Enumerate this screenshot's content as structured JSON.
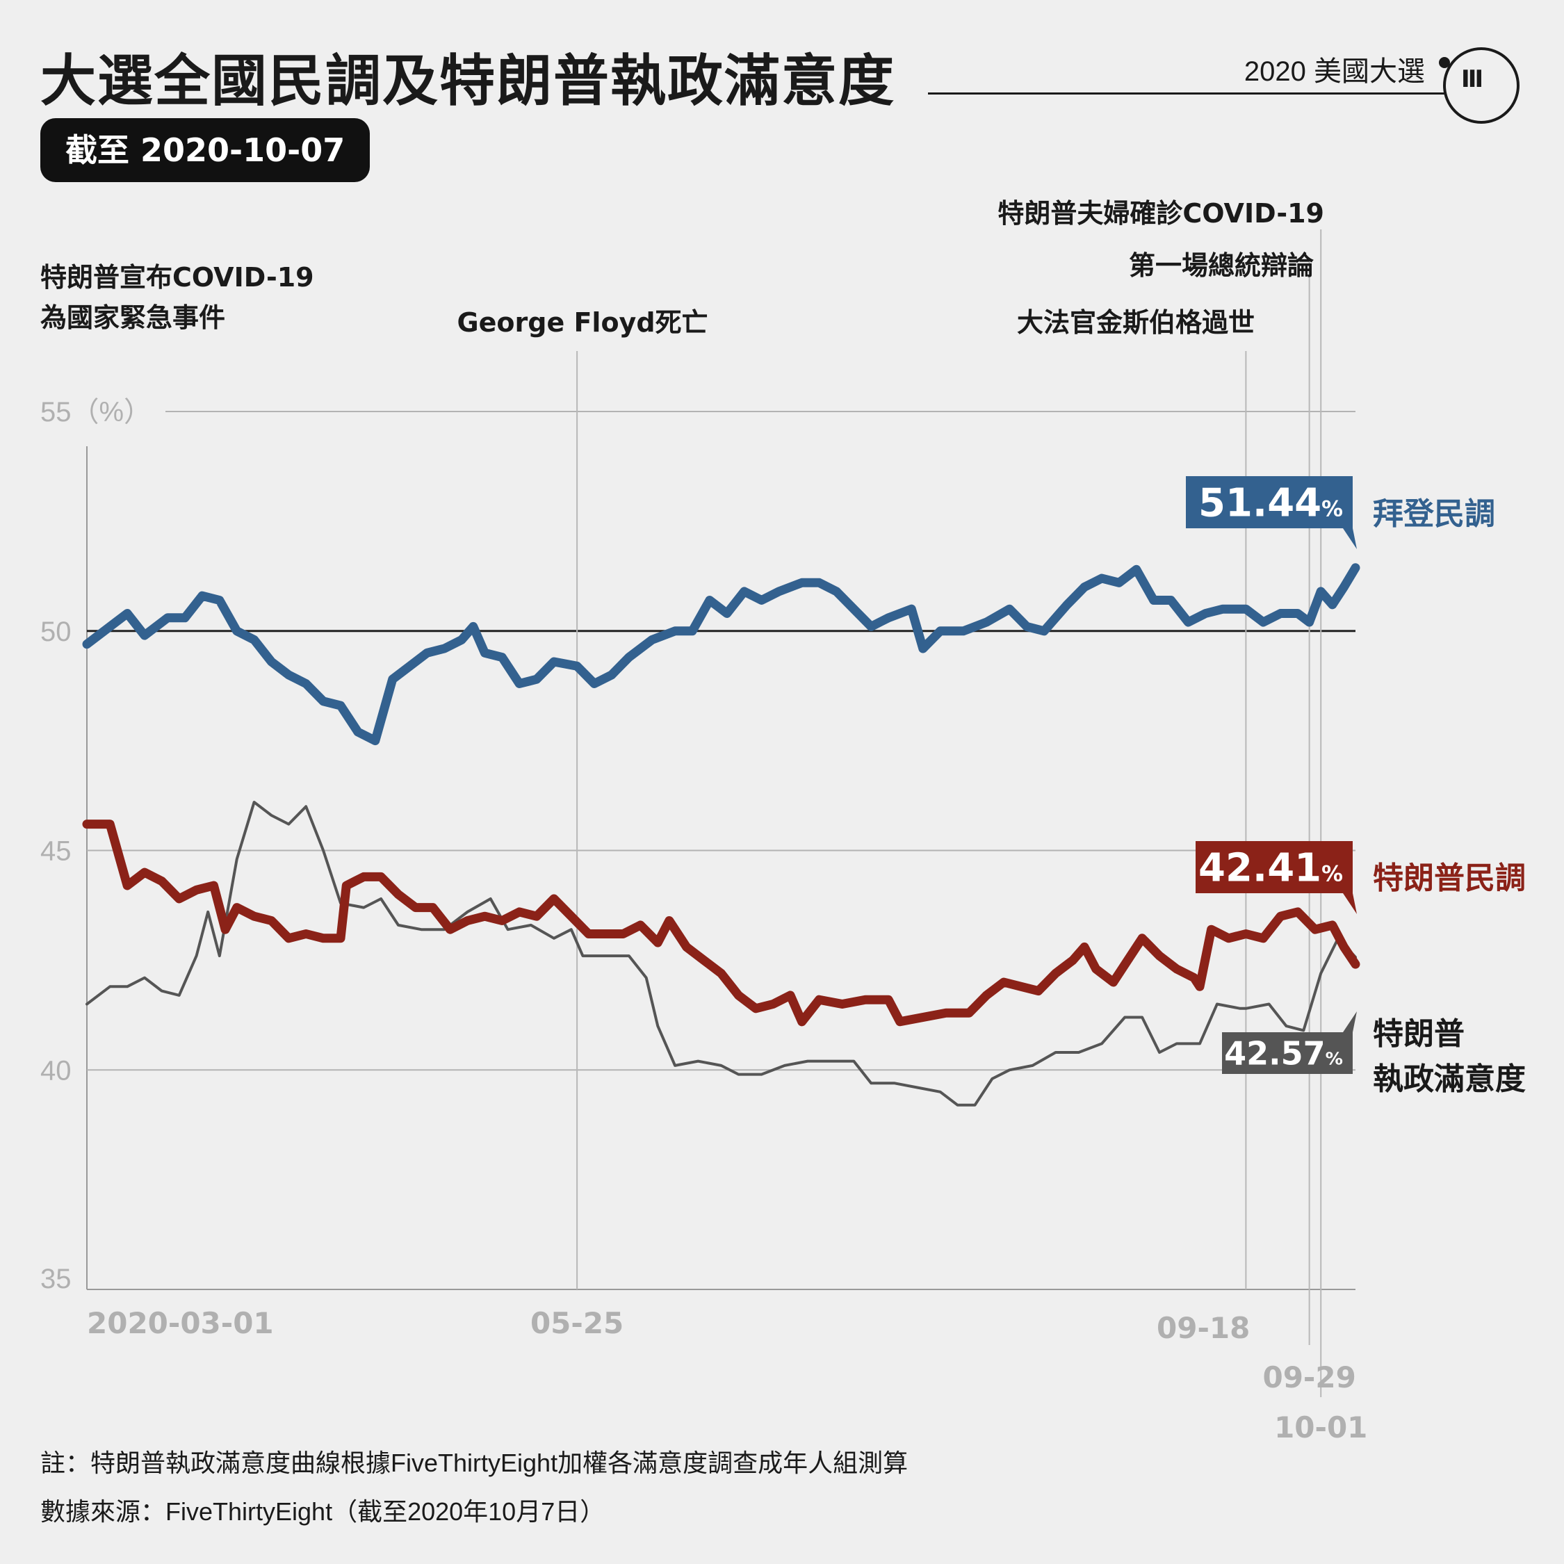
{
  "header": {
    "title": "大選全國民調及特朗普執政滿意度",
    "section_label": "2020 美國大選",
    "date_badge": "截至 2020-10-07",
    "logo": "端-logo-icon"
  },
  "chart_data": {
    "type": "line",
    "title": "大選全國民調及特朗普執政滿意度",
    "ylim": [
      35,
      55
    ],
    "y_ticks": [
      {
        "value": 55,
        "label": "55（%）"
      },
      {
        "value": 50,
        "label": "50"
      },
      {
        "value": 45,
        "label": "45"
      },
      {
        "value": 40,
        "label": "40"
      },
      {
        "value": 35,
        "label": "35"
      }
    ],
    "x_range": [
      "2020-03-01",
      "2020-10-07"
    ],
    "x_ticks": [
      {
        "date": "2020-03-01",
        "label": "2020-03-01"
      },
      {
        "date": "2020-05-25",
        "label": "05-25"
      },
      {
        "date": "2020-09-18",
        "label": "09-18"
      },
      {
        "date": "2020-09-29",
        "label": "09-29"
      },
      {
        "date": "2020-10-01",
        "label": "10-01"
      }
    ],
    "series": [
      {
        "name": "拜登民調",
        "color": "#33618f",
        "end_label": "51.44",
        "points": [
          [
            "2020-03-01",
            49.7
          ],
          [
            "2020-03-05",
            50.1
          ],
          [
            "2020-03-08",
            50.4
          ],
          [
            "2020-03-11",
            49.9
          ],
          [
            "2020-03-15",
            50.3
          ],
          [
            "2020-03-18",
            50.3
          ],
          [
            "2020-03-21",
            50.8
          ],
          [
            "2020-03-24",
            50.7
          ],
          [
            "2020-03-27",
            50.0
          ],
          [
            "2020-03-30",
            49.8
          ],
          [
            "2020-04-02",
            49.3
          ],
          [
            "2020-04-05",
            49.0
          ],
          [
            "2020-04-08",
            48.8
          ],
          [
            "2020-04-11",
            48.4
          ],
          [
            "2020-04-14",
            48.3
          ],
          [
            "2020-04-17",
            47.7
          ],
          [
            "2020-04-20",
            47.5
          ],
          [
            "2020-04-23",
            48.9
          ],
          [
            "2020-04-26",
            49.2
          ],
          [
            "2020-04-29",
            49.5
          ],
          [
            "2020-05-02",
            49.6
          ],
          [
            "2020-05-05",
            49.8
          ],
          [
            "2020-05-07",
            50.1
          ],
          [
            "2020-05-09",
            49.5
          ],
          [
            "2020-05-12",
            49.4
          ],
          [
            "2020-05-15",
            48.8
          ],
          [
            "2020-05-18",
            48.9
          ],
          [
            "2020-05-21",
            49.3
          ],
          [
            "2020-05-25",
            49.2
          ],
          [
            "2020-05-28",
            48.8
          ],
          [
            "2020-05-31",
            49.0
          ],
          [
            "2020-06-03",
            49.4
          ],
          [
            "2020-06-07",
            49.8
          ],
          [
            "2020-06-11",
            50.0
          ],
          [
            "2020-06-14",
            50.0
          ],
          [
            "2020-06-17",
            50.7
          ],
          [
            "2020-06-20",
            50.4
          ],
          [
            "2020-06-23",
            50.9
          ],
          [
            "2020-06-26",
            50.7
          ],
          [
            "2020-06-29",
            50.9
          ],
          [
            "2020-07-03",
            51.1
          ],
          [
            "2020-07-06",
            51.1
          ],
          [
            "2020-07-09",
            50.9
          ],
          [
            "2020-07-12",
            50.5
          ],
          [
            "2020-07-15",
            50.1
          ],
          [
            "2020-07-18",
            50.3
          ],
          [
            "2020-07-22",
            50.5
          ],
          [
            "2020-07-24",
            49.6
          ],
          [
            "2020-07-27",
            50.0
          ],
          [
            "2020-07-31",
            50.0
          ],
          [
            "2020-08-04",
            50.2
          ],
          [
            "2020-08-08",
            50.5
          ],
          [
            "2020-08-11",
            50.1
          ],
          [
            "2020-08-14",
            50.0
          ],
          [
            "2020-08-18",
            50.6
          ],
          [
            "2020-08-21",
            51.0
          ],
          [
            "2020-08-24",
            51.2
          ],
          [
            "2020-08-27",
            51.1
          ],
          [
            "2020-08-30",
            51.4
          ],
          [
            "2020-09-02",
            50.7
          ],
          [
            "2020-09-05",
            50.7
          ],
          [
            "2020-09-08",
            50.2
          ],
          [
            "2020-09-11",
            50.4
          ],
          [
            "2020-09-14",
            50.5
          ],
          [
            "2020-09-18",
            50.5
          ],
          [
            "2020-09-21",
            50.2
          ],
          [
            "2020-09-24",
            50.4
          ],
          [
            "2020-09-27",
            50.4
          ],
          [
            "2020-09-29",
            50.2
          ],
          [
            "2020-10-01",
            50.9
          ],
          [
            "2020-10-03",
            50.6
          ],
          [
            "2020-10-05",
            51.0
          ],
          [
            "2020-10-07",
            51.44
          ]
        ]
      },
      {
        "name": "特朗普民調",
        "color": "#8b2218",
        "end_label": "42.41",
        "points": [
          [
            "2020-03-01",
            45.6
          ],
          [
            "2020-03-05",
            45.6
          ],
          [
            "2020-03-08",
            44.2
          ],
          [
            "2020-03-11",
            44.5
          ],
          [
            "2020-03-14",
            44.3
          ],
          [
            "2020-03-17",
            43.9
          ],
          [
            "2020-03-20",
            44.1
          ],
          [
            "2020-03-23",
            44.2
          ],
          [
            "2020-03-25",
            43.2
          ],
          [
            "2020-03-27",
            43.7
          ],
          [
            "2020-03-30",
            43.5
          ],
          [
            "2020-04-02",
            43.4
          ],
          [
            "2020-04-05",
            43.0
          ],
          [
            "2020-04-08",
            43.1
          ],
          [
            "2020-04-11",
            43.0
          ],
          [
            "2020-04-14",
            43.0
          ],
          [
            "2020-04-15",
            44.2
          ],
          [
            "2020-04-18",
            44.4
          ],
          [
            "2020-04-21",
            44.4
          ],
          [
            "2020-04-24",
            44.0
          ],
          [
            "2020-04-27",
            43.7
          ],
          [
            "2020-04-30",
            43.7
          ],
          [
            "2020-05-03",
            43.2
          ],
          [
            "2020-05-06",
            43.4
          ],
          [
            "2020-05-09",
            43.5
          ],
          [
            "2020-05-12",
            43.4
          ],
          [
            "2020-05-15",
            43.6
          ],
          [
            "2020-05-18",
            43.5
          ],
          [
            "2020-05-21",
            43.9
          ],
          [
            "2020-05-24",
            43.5
          ],
          [
            "2020-05-27",
            43.1
          ],
          [
            "2020-05-30",
            43.1
          ],
          [
            "2020-06-02",
            43.1
          ],
          [
            "2020-06-05",
            43.3
          ],
          [
            "2020-06-08",
            42.9
          ],
          [
            "2020-06-10",
            43.4
          ],
          [
            "2020-06-13",
            42.8
          ],
          [
            "2020-06-16",
            42.5
          ],
          [
            "2020-06-19",
            42.2
          ],
          [
            "2020-06-22",
            41.7
          ],
          [
            "2020-06-25",
            41.4
          ],
          [
            "2020-06-28",
            41.5
          ],
          [
            "2020-07-01",
            41.7
          ],
          [
            "2020-07-03",
            41.1
          ],
          [
            "2020-07-06",
            41.6
          ],
          [
            "2020-07-10",
            41.5
          ],
          [
            "2020-07-14",
            41.6
          ],
          [
            "2020-07-18",
            41.6
          ],
          [
            "2020-07-20",
            41.1
          ],
          [
            "2020-07-24",
            41.2
          ],
          [
            "2020-07-28",
            41.3
          ],
          [
            "2020-08-01",
            41.3
          ],
          [
            "2020-08-04",
            41.7
          ],
          [
            "2020-08-07",
            42.0
          ],
          [
            "2020-08-10",
            41.9
          ],
          [
            "2020-08-13",
            41.8
          ],
          [
            "2020-08-16",
            42.2
          ],
          [
            "2020-08-19",
            42.5
          ],
          [
            "2020-08-21",
            42.8
          ],
          [
            "2020-08-23",
            42.3
          ],
          [
            "2020-08-26",
            42.0
          ],
          [
            "2020-08-29",
            42.6
          ],
          [
            "2020-08-31",
            43.0
          ],
          [
            "2020-09-03",
            42.6
          ],
          [
            "2020-09-06",
            42.3
          ],
          [
            "2020-09-09",
            42.1
          ],
          [
            "2020-09-10",
            41.9
          ],
          [
            "2020-09-12",
            43.2
          ],
          [
            "2020-09-15",
            43.0
          ],
          [
            "2020-09-18",
            43.1
          ],
          [
            "2020-09-21",
            43.0
          ],
          [
            "2020-09-24",
            43.5
          ],
          [
            "2020-09-27",
            43.6
          ],
          [
            "2020-09-30",
            43.2
          ],
          [
            "2020-10-03",
            43.3
          ],
          [
            "2020-10-05",
            42.8
          ],
          [
            "2020-10-07",
            42.41
          ]
        ]
      },
      {
        "name": "特朗普執政滿意度",
        "color": "#555555",
        "end_label": "42.57",
        "points": [
          [
            "2020-03-01",
            41.5
          ],
          [
            "2020-03-05",
            41.9
          ],
          [
            "2020-03-08",
            41.9
          ],
          [
            "2020-03-11",
            42.1
          ],
          [
            "2020-03-14",
            41.8
          ],
          [
            "2020-03-17",
            41.7
          ],
          [
            "2020-03-20",
            42.6
          ],
          [
            "2020-03-22",
            43.6
          ],
          [
            "2020-03-24",
            42.6
          ],
          [
            "2020-03-27",
            44.8
          ],
          [
            "2020-03-30",
            46.1
          ],
          [
            "2020-04-02",
            45.8
          ],
          [
            "2020-04-05",
            45.6
          ],
          [
            "2020-04-08",
            46.0
          ],
          [
            "2020-04-11",
            45.0
          ],
          [
            "2020-04-14",
            43.8
          ],
          [
            "2020-04-18",
            43.7
          ],
          [
            "2020-04-21",
            43.9
          ],
          [
            "2020-04-24",
            43.3
          ],
          [
            "2020-04-28",
            43.2
          ],
          [
            "2020-05-02",
            43.2
          ],
          [
            "2020-05-06",
            43.6
          ],
          [
            "2020-05-10",
            43.9
          ],
          [
            "2020-05-13",
            43.2
          ],
          [
            "2020-05-17",
            43.3
          ],
          [
            "2020-05-21",
            43.0
          ],
          [
            "2020-05-24",
            43.2
          ],
          [
            "2020-05-26",
            42.6
          ],
          [
            "2020-05-30",
            42.6
          ],
          [
            "2020-06-03",
            42.6
          ],
          [
            "2020-06-06",
            42.1
          ],
          [
            "2020-06-08",
            41.0
          ],
          [
            "2020-06-11",
            40.1
          ],
          [
            "2020-06-15",
            40.2
          ],
          [
            "2020-06-19",
            40.1
          ],
          [
            "2020-06-22",
            39.9
          ],
          [
            "2020-06-26",
            39.9
          ],
          [
            "2020-06-30",
            40.1
          ],
          [
            "2020-07-04",
            40.2
          ],
          [
            "2020-07-08",
            40.2
          ],
          [
            "2020-07-12",
            40.2
          ],
          [
            "2020-07-15",
            39.7
          ],
          [
            "2020-07-19",
            39.7
          ],
          [
            "2020-07-23",
            39.6
          ],
          [
            "2020-07-27",
            39.5
          ],
          [
            "2020-07-30",
            39.2
          ],
          [
            "2020-08-02",
            39.2
          ],
          [
            "2020-08-05",
            39.8
          ],
          [
            "2020-08-08",
            40.0
          ],
          [
            "2020-08-12",
            40.1
          ],
          [
            "2020-08-16",
            40.4
          ],
          [
            "2020-08-20",
            40.4
          ],
          [
            "2020-08-24",
            40.6
          ],
          [
            "2020-08-28",
            41.2
          ],
          [
            "2020-08-31",
            41.2
          ],
          [
            "2020-09-03",
            40.4
          ],
          [
            "2020-09-06",
            40.6
          ],
          [
            "2020-09-10",
            40.6
          ],
          [
            "2020-09-13",
            41.5
          ],
          [
            "2020-09-17",
            41.4
          ],
          [
            "2020-09-18",
            41.4
          ],
          [
            "2020-09-22",
            41.5
          ],
          [
            "2020-09-25",
            41.0
          ],
          [
            "2020-09-28",
            40.9
          ],
          [
            "2020-10-01",
            42.2
          ],
          [
            "2020-10-04",
            43.0
          ],
          [
            "2020-10-07",
            42.57
          ]
        ]
      }
    ],
    "legend": [
      {
        "series": "拜登民調",
        "value": "51.44",
        "unit": "%",
        "label_lines": [
          "拜登民調"
        ],
        "color": "#33618f"
      },
      {
        "series": "特朗普民調",
        "value": "42.41",
        "unit": "%",
        "label_lines": [
          "特朗普民調"
        ],
        "color": "#8b2218"
      },
      {
        "series": "特朗普執政滿意度",
        "value": "42.57",
        "unit": "%",
        "label_lines": [
          "特朗普",
          "執政滿意度"
        ],
        "color": "#555555"
      }
    ],
    "annotations": [
      {
        "date": "2020-03-13",
        "lines": [
          "特朗普宣布COVID-19",
          "為國家緊急事件"
        ]
      },
      {
        "date": "2020-05-25",
        "lines": [
          "George Floyd死亡"
        ]
      },
      {
        "date": "2020-09-18",
        "lines": [
          "大法官金斯伯格過世"
        ]
      },
      {
        "date": "2020-09-29",
        "lines": [
          "第一場總統辯論"
        ]
      },
      {
        "date": "2020-10-01",
        "lines": [
          "特朗普夫婦確診COVID-19"
        ]
      }
    ],
    "reference_line": 50
  },
  "footnotes": {
    "note": "註：特朗普執政滿意度曲線根據FiveThirtyEight加權各滿意度調查成年人組測算",
    "source": "數據來源：FiveThirtyEight（截至2020年10月7日）"
  }
}
